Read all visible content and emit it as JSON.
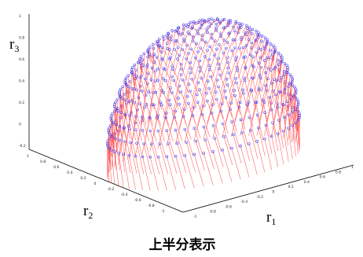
{
  "caption": "上半分表示",
  "chart_data": {
    "type": "scatter",
    "subtype": "3d-quiver-hemisphere",
    "title": "",
    "caption": "上半分表示",
    "axes": {
      "x": {
        "label": "r",
        "subscript": "1",
        "range": [
          -1,
          1
        ],
        "ticks": [
          "-1",
          "-0.8",
          "-0.6",
          "-0.4",
          "-0.2",
          "0",
          "0.2",
          "0.4",
          "0.6",
          "0.8",
          "1"
        ]
      },
      "y": {
        "label": "r",
        "subscript": "2",
        "range": [
          -1,
          1
        ],
        "ticks": [
          "1",
          "0.8",
          "0.6",
          "0.4",
          "0.2",
          "0",
          "-0.2",
          "-0.4",
          "-0.6",
          "-0.8",
          "-1"
        ]
      },
      "z": {
        "label": "r",
        "subscript": "3",
        "range": [
          -0.2,
          1
        ],
        "ticks": [
          "1",
          "0.8",
          "0.6",
          "0.4",
          "0.2",
          "0",
          "-0.2"
        ]
      }
    },
    "surface": {
      "shape": "upper hemisphere",
      "radius": 1
    },
    "series": [
      {
        "marker": "circle",
        "color": "#3a3aff"
      },
      {
        "marker": "line",
        "color": "#ff3b3b"
      }
    ],
    "grid": false,
    "box": true
  }
}
